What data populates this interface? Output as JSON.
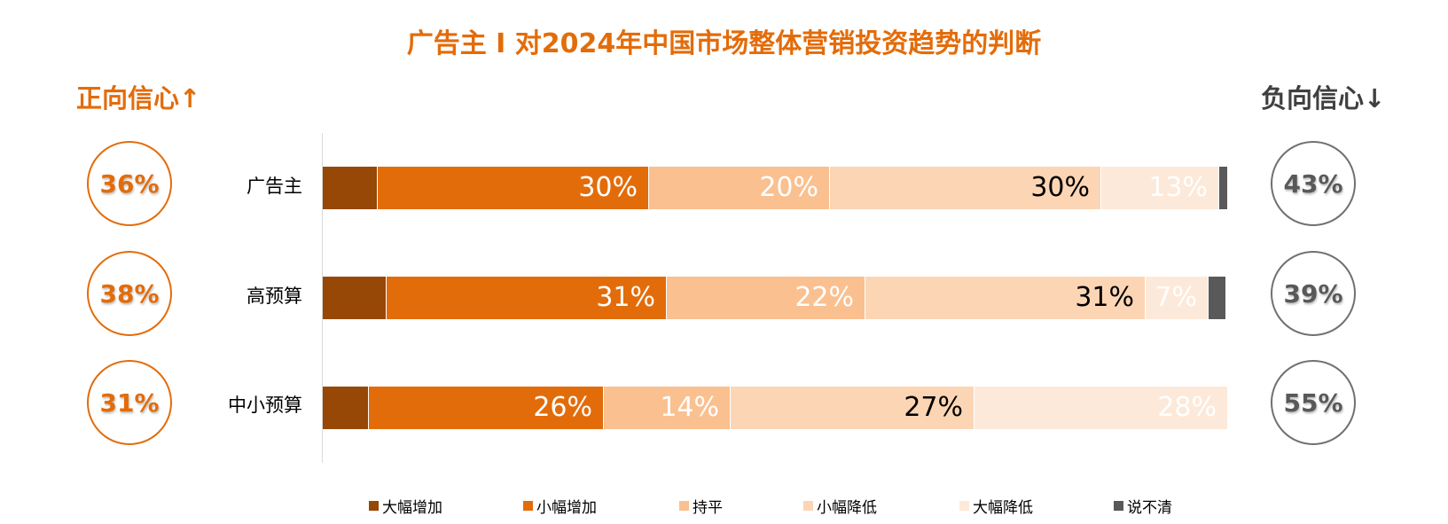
{
  "title": "广告主 I 对2024年中国市场整体营销投资趋势的判断",
  "positive_label": "正向信心↑",
  "negative_label": "负向信心↓",
  "colors": {
    "大幅增加": "#974706",
    "小幅增加": "#E36C0A",
    "持平": "#FAC090",
    "小幅降低": "#FCD5B5",
    "大幅降低": "#FDE9D9",
    "说不清": "#595959",
    "positive": "#E36C0A",
    "negative": "#595959"
  },
  "rows": [
    {
      "label": "广告主",
      "positive": "36%",
      "negative": "43%"
    },
    {
      "label": "高预算",
      "positive": "38%",
      "negative": "39%"
    },
    {
      "label": "中小预算",
      "positive": "31%",
      "negative": "55%"
    }
  ],
  "chart_data": {
    "type": "bar",
    "stacked": true,
    "orientation": "horizontal",
    "categories": [
      "广告主",
      "高预算",
      "中小预算"
    ],
    "series": [
      {
        "name": "大幅增加",
        "values": [
          6,
          7,
          5
        ],
        "labels": [
          "",
          "",
          ""
        ],
        "label_color": "#FFFFFF"
      },
      {
        "name": "小幅增加",
        "values": [
          30,
          31,
          26
        ],
        "labels": [
          "30%",
          "31%",
          "26%"
        ],
        "label_color": "#FFFFFF"
      },
      {
        "name": "持平",
        "values": [
          20,
          22,
          14
        ],
        "labels": [
          "20%",
          "22%",
          "14%"
        ],
        "label_color": "#FFFFFF"
      },
      {
        "name": "小幅降低",
        "values": [
          30,
          31,
          27
        ],
        "labels": [
          "30%",
          "31%",
          "27%"
        ],
        "label_color": "#000000"
      },
      {
        "name": "大幅降低",
        "values": [
          13,
          7,
          28
        ],
        "labels": [
          "13%",
          "7%",
          "28%"
        ],
        "label_color": "#FFFFFF"
      },
      {
        "name": "说不清",
        "values": [
          1,
          2,
          0
        ],
        "labels": [
          "",
          "",
          ""
        ],
        "label_color": "#FFFFFF"
      }
    ],
    "xlim": [
      0,
      100
    ],
    "legend_position": "bottom"
  },
  "legend": [
    "大幅增加",
    "小幅增加",
    "持平",
    "小幅降低",
    "大幅降低",
    "说不清"
  ]
}
